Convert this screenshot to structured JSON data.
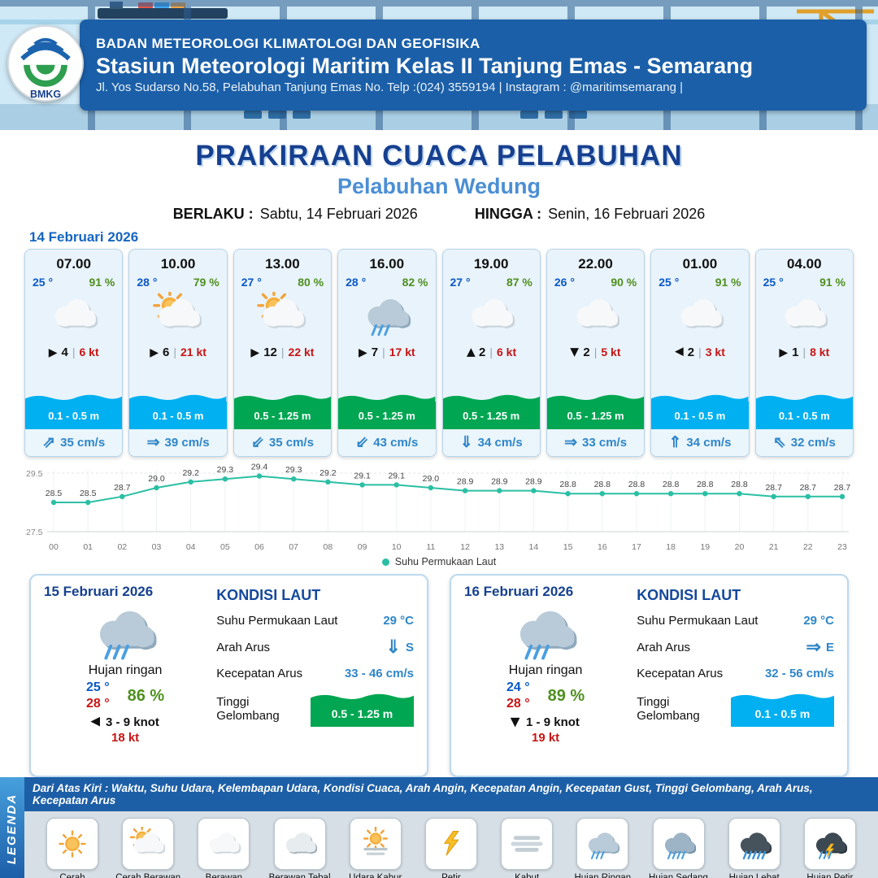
{
  "header": {
    "logo_text": "BMKG",
    "org": "BADAN METEOROLOGI KLIMATOLOGI DAN GEOFISIKA",
    "station": "Stasiun Meteorologi Maritim Kelas II Tanjung Emas - Semarang",
    "address": "Jl. Yos Sudarso No.58, Pelabuhan Tanjung Emas No. Telp :(024) 3559194 | Instagram : @maritimsemarang |"
  },
  "title": {
    "main": "PRAKIRAAN CUACA PELABUHAN",
    "sub": "Pelabuhan Wedung",
    "valid_from_label": "BERLAKU :",
    "valid_from": "Sabtu, 14 Februari 2026",
    "valid_to_label": "HINGGA :",
    "valid_to": "Senin, 16 Februari 2026"
  },
  "day_label": "14 Februari 2026",
  "hourly": [
    {
      "time": "07.00",
      "temp": "25 °",
      "humidity": "91 %",
      "icon": "berawan",
      "wind_dir": "e",
      "wind_val": "4",
      "gust": "6 kt",
      "wave": "0.1 - 0.5 m",
      "wave_level": "low",
      "current_dir": "ne",
      "current": "35 cm/s"
    },
    {
      "time": "10.00",
      "temp": "28 °",
      "humidity": "79 %",
      "icon": "cerah-berawan",
      "wind_dir": "e",
      "wind_val": "6",
      "gust": "21 kt",
      "wave": "0.1 - 0.5 m",
      "wave_level": "low",
      "current_dir": "e",
      "current": "39 cm/s"
    },
    {
      "time": "13.00",
      "temp": "27 °",
      "humidity": "80 %",
      "icon": "cerah-berawan",
      "wind_dir": "e",
      "wind_val": "12",
      "gust": "22 kt",
      "wave": "0.5 - 1.25 m",
      "wave_level": "mid",
      "current_dir": "sw",
      "current": "35 cm/s"
    },
    {
      "time": "16.00",
      "temp": "28 °",
      "humidity": "82 %",
      "icon": "hujan-ringan",
      "wind_dir": "e",
      "wind_val": "7",
      "gust": "17 kt",
      "wave": "0.5 - 1.25 m",
      "wave_level": "mid",
      "current_dir": "sw",
      "current": "43 cm/s"
    },
    {
      "time": "19.00",
      "temp": "27 °",
      "humidity": "87 %",
      "icon": "berawan",
      "wind_dir": "n",
      "wind_val": "2",
      "gust": "6 kt",
      "wave": "0.5 - 1.25 m",
      "wave_level": "mid",
      "current_dir": "s",
      "current": "34 cm/s"
    },
    {
      "time": "22.00",
      "temp": "26 °",
      "humidity": "90 %",
      "icon": "berawan",
      "wind_dir": "s",
      "wind_val": "2",
      "gust": "5 kt",
      "wave": "0.5 - 1.25 m",
      "wave_level": "mid",
      "current_dir": "e",
      "current": "33 cm/s"
    },
    {
      "time": "01.00",
      "temp": "25 °",
      "humidity": "91 %",
      "icon": "berawan",
      "wind_dir": "w",
      "wind_val": "2",
      "gust": "3 kt",
      "wave": "0.1 - 0.5 m",
      "wave_level": "low",
      "current_dir": "n",
      "current": "34 cm/s"
    },
    {
      "time": "04.00",
      "temp": "25 °",
      "humidity": "91 %",
      "icon": "berawan",
      "wind_dir": "e",
      "wind_val": "1",
      "gust": "8 kt",
      "wave": "0.1 - 0.5 m",
      "wave_level": "low",
      "current_dir": "nw",
      "current": "32 cm/s"
    }
  ],
  "chart_data": {
    "type": "line",
    "x": [
      "00",
      "01",
      "02",
      "03",
      "04",
      "05",
      "06",
      "07",
      "08",
      "09",
      "10",
      "11",
      "12",
      "13",
      "14",
      "15",
      "16",
      "17",
      "18",
      "19",
      "20",
      "21",
      "22",
      "23"
    ],
    "values": [
      28.5,
      28.5,
      28.7,
      29.0,
      29.2,
      29.3,
      29.4,
      29.3,
      29.2,
      29.1,
      29.1,
      29.0,
      28.9,
      28.9,
      28.9,
      28.8,
      28.8,
      28.8,
      28.8,
      28.8,
      28.8,
      28.7,
      28.7,
      28.7
    ],
    "ylim": [
      27.5,
      29.5
    ],
    "ytick_labels": [
      "29.5",
      "27.5"
    ],
    "legend": "Suhu Permukaan Laut",
    "line_color": "#2bbfa4",
    "xlabel": "",
    "ylabel": ""
  },
  "daily": [
    {
      "date": "15 Februari 2026",
      "icon": "hujan-ringan",
      "condition": "Hujan ringan",
      "temp_min": "25 °",
      "temp_max": "28 °",
      "humidity": "86 %",
      "wind_dir": "w",
      "wind_range": "3 - 9 knot",
      "gust": "18 kt",
      "sea": {
        "title": "KONDISI LAUT",
        "sst_label": "Suhu Permukaan Laut",
        "sst": "29 °C",
        "current_dir_label": "Arah Arus",
        "current_dir": "s",
        "current_dir_text": "S",
        "current_speed_label": "Kecepatan Arus",
        "current_speed": "33 - 46 cm/s",
        "wave_label": "Tinggi Gelombang",
        "wave": "0.5 - 1.25 m",
        "wave_level": "mid"
      }
    },
    {
      "date": "16 Februari 2026",
      "icon": "hujan-ringan",
      "condition": "Hujan ringan",
      "temp_min": "24 °",
      "temp_max": "28 °",
      "humidity": "89 %",
      "wind_dir": "s",
      "wind_range": "1 - 9 knot",
      "gust": "19 kt",
      "sea": {
        "title": "KONDISI LAUT",
        "sst_label": "Suhu Permukaan Laut",
        "sst": "29 °C",
        "current_dir_label": "Arah Arus",
        "current_dir": "e",
        "current_dir_text": "E",
        "current_speed_label": "Kecepatan Arus",
        "current_speed": "32 - 56 cm/s",
        "wave_label": "Tinggi Gelombang",
        "wave": "0.1 - 0.5 m",
        "wave_level": "low"
      }
    }
  ],
  "legend": {
    "vertical_label": "LEGENDA",
    "note": "Dari Atas Kiri : Waktu, Suhu Udara, Kelembapan Udara, Kondisi Cuaca, Arah Angin, Kecepatan Angin, Kecepatan Gust, Tinggi Gelombang, Arah Arus, Kecepatan Arus",
    "items": [
      {
        "icon": "cerah",
        "label": "Cerah"
      },
      {
        "icon": "cerah-berawan",
        "label": "Cerah Berawan"
      },
      {
        "icon": "berawan",
        "label": "Berawan"
      },
      {
        "icon": "berawan-tebal",
        "label": "Berawan Tebal"
      },
      {
        "icon": "udara-kabur",
        "label": "Udara Kabur"
      },
      {
        "icon": "petir",
        "label": "Petir"
      },
      {
        "icon": "kabut",
        "label": "Kabut"
      },
      {
        "icon": "hujan-ringan",
        "label": "Hujan Ringan"
      },
      {
        "icon": "hujan-sedang",
        "label": "Hujan Sedang"
      },
      {
        "icon": "hujan-lebat",
        "label": "Hujan Lebat"
      },
      {
        "icon": "hujan-petir",
        "label": "Hujan Petir"
      }
    ]
  }
}
